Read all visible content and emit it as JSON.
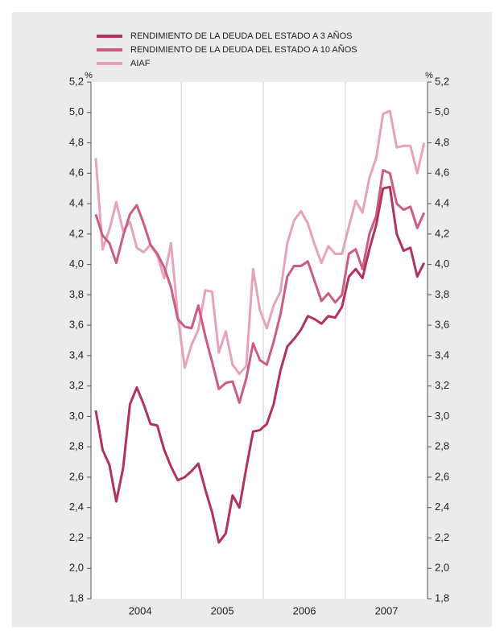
{
  "chart_data": {
    "type": "line",
    "y_unit": "%",
    "x": [
      2003.958,
      2004.042,
      2004.125,
      2004.208,
      2004.292,
      2004.375,
      2004.458,
      2004.542,
      2004.625,
      2004.708,
      2004.792,
      2004.875,
      2004.958,
      2005.042,
      2005.125,
      2005.208,
      2005.292,
      2005.375,
      2005.458,
      2005.542,
      2005.625,
      2005.708,
      2005.792,
      2005.875,
      2005.958,
      2006.042,
      2006.125,
      2006.208,
      2006.292,
      2006.375,
      2006.458,
      2006.542,
      2006.625,
      2006.708,
      2006.792,
      2006.875,
      2006.958,
      2007.042,
      2007.125,
      2007.208,
      2007.292,
      2007.375,
      2007.458,
      2007.542,
      2007.625,
      2007.708,
      2007.792,
      2007.875,
      2007.958
    ],
    "series": [
      {
        "name": "RENDIMIENTO DE LA DEUDA DEL ESTADO A 3 AÑOS",
        "color": "#b0335f",
        "values": [
          3.04,
          2.78,
          2.68,
          2.44,
          2.66,
          3.08,
          3.19,
          3.08,
          2.95,
          2.94,
          2.78,
          2.67,
          2.58,
          2.6,
          2.64,
          2.69,
          2.52,
          2.37,
          2.17,
          2.23,
          2.48,
          2.4,
          2.66,
          2.9,
          2.91,
          2.95,
          3.08,
          3.3,
          3.46,
          3.51,
          3.57,
          3.66,
          3.64,
          3.61,
          3.66,
          3.65,
          3.72,
          3.92,
          3.97,
          3.91,
          4.1,
          4.26,
          4.5,
          4.51,
          4.2,
          4.09,
          4.11,
          3.92,
          4.01
        ]
      },
      {
        "name": "RENDIMIENTO DE LA DEUDA DEL ESTADO A 10 AÑOS",
        "color": "#cc5c86",
        "values": [
          4.33,
          4.19,
          4.14,
          4.01,
          4.19,
          4.33,
          4.39,
          4.27,
          4.13,
          4.07,
          3.98,
          3.85,
          3.64,
          3.59,
          3.58,
          3.73,
          3.53,
          3.36,
          3.18,
          3.22,
          3.23,
          3.09,
          3.25,
          3.48,
          3.37,
          3.34,
          3.49,
          3.67,
          3.92,
          3.99,
          3.99,
          4.02,
          3.89,
          3.76,
          3.81,
          3.75,
          3.8,
          4.07,
          4.1,
          3.97,
          4.2,
          4.32,
          4.62,
          4.6,
          4.4,
          4.36,
          4.38,
          4.24,
          4.34
        ]
      },
      {
        "name": "AIAF",
        "color": "#e6a3bb",
        "values": [
          4.7,
          4.1,
          4.23,
          4.41,
          4.22,
          4.28,
          4.11,
          4.08,
          4.13,
          4.06,
          3.91,
          4.14,
          3.66,
          3.32,
          3.47,
          3.57,
          3.83,
          3.82,
          3.42,
          3.56,
          3.34,
          3.28,
          3.33,
          3.97,
          3.7,
          3.58,
          3.73,
          3.82,
          4.14,
          4.29,
          4.35,
          4.27,
          4.13,
          4.01,
          4.12,
          4.07,
          4.07,
          4.25,
          4.42,
          4.34,
          4.57,
          4.7,
          4.99,
          5.01,
          4.77,
          4.78,
          4.78,
          4.6,
          4.8
        ]
      }
    ],
    "xlim": [
      2003.9,
      2008
    ],
    "xticks": [
      {
        "value": 2004.5,
        "label": "2004"
      },
      {
        "value": 2005.5,
        "label": "2005"
      },
      {
        "value": 2006.5,
        "label": "2006"
      },
      {
        "value": 2007.5,
        "label": "2007"
      }
    ],
    "xgrid": [
      2005,
      2006,
      2007
    ],
    "ylim": [
      1.8,
      5.2
    ],
    "yticks": [
      {
        "value": 1.8,
        "label": "1,8"
      },
      {
        "value": 2.0,
        "label": "2,0"
      },
      {
        "value": 2.2,
        "label": "2,2"
      },
      {
        "value": 2.4,
        "label": "2,4"
      },
      {
        "value": 2.6,
        "label": "2,6"
      },
      {
        "value": 2.8,
        "label": "2,8"
      },
      {
        "value": 3.0,
        "label": "3,0"
      },
      {
        "value": 3.2,
        "label": "3,2"
      },
      {
        "value": 3.4,
        "label": "3,4"
      },
      {
        "value": 3.6,
        "label": "3,6"
      },
      {
        "value": 3.8,
        "label": "3,8"
      },
      {
        "value": 4.0,
        "label": "4,0"
      },
      {
        "value": 4.2,
        "label": "4,2"
      },
      {
        "value": 4.4,
        "label": "4,4"
      },
      {
        "value": 4.6,
        "label": "4,6"
      },
      {
        "value": 4.8,
        "label": "4,8"
      },
      {
        "value": 5.0,
        "label": "5,0"
      },
      {
        "value": 5.2,
        "label": "5,2"
      }
    ]
  }
}
